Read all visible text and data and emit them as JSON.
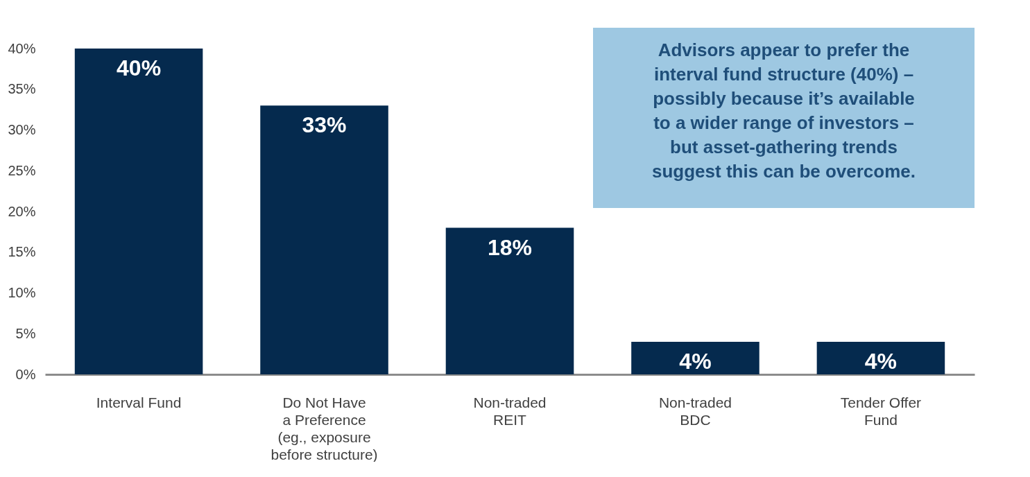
{
  "chart_data": {
    "type": "bar",
    "categories": [
      "Interval Fund",
      "Do Not Have\na Preference\n(eg., exposure\nbefore structure)",
      "Non-traded\nREIT",
      "Non-traded\nBDC",
      "Tender Offer\nFund"
    ],
    "values": [
      40,
      33,
      18,
      4,
      4
    ],
    "color": "#052a4e",
    "ylim": [
      0,
      40
    ],
    "yticks": [
      {
        "value": 0,
        "label": "0%"
      },
      {
        "value": 5,
        "label": "5%"
      },
      {
        "value": 10,
        "label": "10%"
      },
      {
        "value": 15,
        "label": "15%"
      },
      {
        "value": 20,
        "label": "20%"
      },
      {
        "value": 25,
        "label": "25%"
      },
      {
        "value": 30,
        "label": "30%"
      },
      {
        "value": 35,
        "label": "35%"
      },
      {
        "value": 40,
        "label": "40%"
      }
    ],
    "value_labels": [
      "40%",
      "33%",
      "18%",
      "4%",
      "4%"
    ],
    "annotations": [
      "Advisors appear to prefer the\ninterval fund structure (40%) –\npossibly because it’s available\nto a wider range of investors –\nbut asset-gathering trends\nsuggest this can be overcome."
    ],
    "grid": false
  }
}
